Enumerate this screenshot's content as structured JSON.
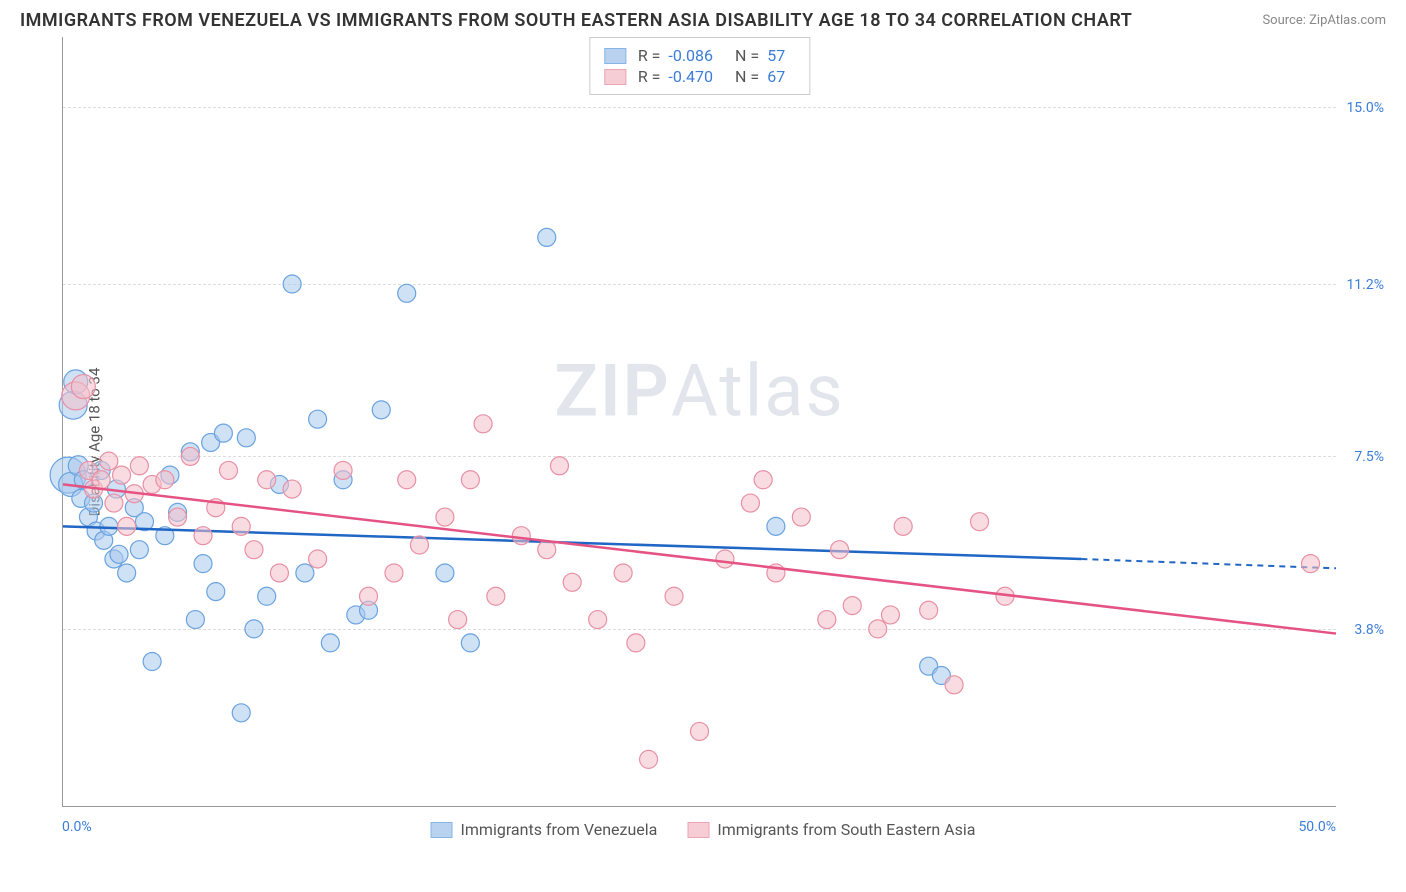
{
  "title": "IMMIGRANTS FROM VENEZUELA VS IMMIGRANTS FROM SOUTH EASTERN ASIA DISABILITY AGE 18 TO 34 CORRELATION CHART",
  "source_label": "Source:",
  "source_name": "ZipAtlas.com",
  "y_axis_label": "Disability Age 18 to 34",
  "watermark_a": "ZIP",
  "watermark_b": "Atlas",
  "chart": {
    "type": "scatter-correlation",
    "xlim": [
      0,
      50
    ],
    "ylim": [
      0,
      16.5
    ],
    "x_tick_labels": {
      "min": "0.0%",
      "max": "50.0%"
    },
    "y_gridlines": [
      {
        "value": 3.8,
        "label": "3.8%"
      },
      {
        "value": 7.5,
        "label": "7.5%"
      },
      {
        "value": 11.2,
        "label": "11.2%"
      },
      {
        "value": 15.0,
        "label": "15.0%"
      }
    ],
    "background_color": "#ffffff",
    "grid_color": "#dddddd",
    "series": [
      {
        "key": "venezuela",
        "label": "Immigrants from Venezuela",
        "fill_color": "#a8c8ec",
        "stroke_color": "#6aa3e0",
        "line_color": "#2066c4",
        "fill_opacity": 0.55,
        "marker_r": 9,
        "R": "-0.086",
        "N": "57",
        "trend": {
          "x0": 0,
          "y0": 6.0,
          "x1": 40,
          "y1": 5.3,
          "x_dash_to": 50,
          "y_dash_to": 5.1
        },
        "points": [
          [
            0.2,
            7.1,
            18
          ],
          [
            0.3,
            6.9,
            12
          ],
          [
            0.4,
            8.6,
            14
          ],
          [
            0.5,
            9.1,
            12
          ],
          [
            0.6,
            7.3,
            10
          ],
          [
            0.7,
            6.6,
            9
          ],
          [
            0.8,
            7.0,
            9
          ],
          [
            1.0,
            6.2,
            9
          ],
          [
            1.2,
            6.5,
            9
          ],
          [
            1.3,
            5.9,
            9
          ],
          [
            1.5,
            7.2,
            9
          ],
          [
            1.6,
            5.7,
            9
          ],
          [
            1.8,
            6.0,
            9
          ],
          [
            2.0,
            5.3,
            9
          ],
          [
            2.1,
            6.8,
            9
          ],
          [
            2.2,
            5.4,
            9
          ],
          [
            2.5,
            5.0,
            9
          ],
          [
            2.8,
            6.4,
            9
          ],
          [
            3.0,
            5.5,
            9
          ],
          [
            3.2,
            6.1,
            9
          ],
          [
            3.5,
            3.1,
            9
          ],
          [
            4.0,
            5.8,
            9
          ],
          [
            4.2,
            7.1,
            9
          ],
          [
            4.5,
            6.3,
            9
          ],
          [
            5.0,
            7.6,
            9
          ],
          [
            5.2,
            4.0,
            9
          ],
          [
            5.5,
            5.2,
            9
          ],
          [
            5.8,
            7.8,
            9
          ],
          [
            6.0,
            4.6,
            9
          ],
          [
            6.3,
            8.0,
            9
          ],
          [
            7.0,
            2.0,
            9
          ],
          [
            7.2,
            7.9,
            9
          ],
          [
            7.5,
            3.8,
            9
          ],
          [
            8.0,
            4.5,
            9
          ],
          [
            8.5,
            6.9,
            9
          ],
          [
            9.0,
            11.2,
            9
          ],
          [
            9.5,
            5.0,
            9
          ],
          [
            10.0,
            8.3,
            9
          ],
          [
            10.5,
            3.5,
            9
          ],
          [
            11.0,
            7.0,
            9
          ],
          [
            11.5,
            4.1,
            9
          ],
          [
            12.0,
            4.2,
            9
          ],
          [
            12.5,
            8.5,
            9
          ],
          [
            13.5,
            11.0,
            9
          ],
          [
            15.0,
            5.0,
            9
          ],
          [
            16.0,
            3.5,
            9
          ],
          [
            19.0,
            12.2,
            9
          ],
          [
            28.0,
            6.0,
            9
          ],
          [
            34.0,
            3.0,
            9
          ],
          [
            34.5,
            2.8,
            9
          ]
        ]
      },
      {
        "key": "seasia",
        "label": "Immigrants from South Eastern Asia",
        "fill_color": "#f4c0cb",
        "stroke_color": "#e890a4",
        "line_color": "#e55383",
        "fill_opacity": 0.55,
        "marker_r": 9,
        "R": "-0.470",
        "N": "67",
        "trend": {
          "x0": 0,
          "y0": 6.9,
          "x1": 50,
          "y1": 3.7
        },
        "points": [
          [
            0.5,
            8.8,
            14
          ],
          [
            0.8,
            9.0,
            12
          ],
          [
            1.0,
            7.2,
            9
          ],
          [
            1.2,
            6.8,
            9
          ],
          [
            1.5,
            7.0,
            9
          ],
          [
            1.8,
            7.4,
            9
          ],
          [
            2.0,
            6.5,
            9
          ],
          [
            2.3,
            7.1,
            9
          ],
          [
            2.5,
            6.0,
            9
          ],
          [
            2.8,
            6.7,
            9
          ],
          [
            3.0,
            7.3,
            9
          ],
          [
            3.5,
            6.9,
            9
          ],
          [
            4.0,
            7.0,
            9
          ],
          [
            4.5,
            6.2,
            9
          ],
          [
            5.0,
            7.5,
            9
          ],
          [
            5.5,
            5.8,
            9
          ],
          [
            6.0,
            6.4,
            9
          ],
          [
            6.5,
            7.2,
            9
          ],
          [
            7.0,
            6.0,
            9
          ],
          [
            7.5,
            5.5,
            9
          ],
          [
            8.0,
            7.0,
            9
          ],
          [
            8.5,
            5.0,
            9
          ],
          [
            9.0,
            6.8,
            9
          ],
          [
            10.0,
            5.3,
            9
          ],
          [
            11.0,
            7.2,
            9
          ],
          [
            12.0,
            4.5,
            9
          ],
          [
            13.0,
            5.0,
            9
          ],
          [
            13.5,
            7.0,
            9
          ],
          [
            14.0,
            5.6,
            9
          ],
          [
            15.0,
            6.2,
            9
          ],
          [
            15.5,
            4.0,
            9
          ],
          [
            16.0,
            7.0,
            9
          ],
          [
            16.5,
            8.2,
            9
          ],
          [
            17.0,
            4.5,
            9
          ],
          [
            18.0,
            5.8,
            9
          ],
          [
            19.0,
            5.5,
            9
          ],
          [
            19.5,
            7.3,
            9
          ],
          [
            20.0,
            4.8,
            9
          ],
          [
            21.0,
            4.0,
            9
          ],
          [
            22.0,
            5.0,
            9
          ],
          [
            22.5,
            3.5,
            9
          ],
          [
            23.0,
            1.0,
            9
          ],
          [
            24.0,
            4.5,
            9
          ],
          [
            25.0,
            1.6,
            9
          ],
          [
            26.0,
            5.3,
            9
          ],
          [
            27.0,
            6.5,
            9
          ],
          [
            27.5,
            7.0,
            9
          ],
          [
            28.0,
            5.0,
            9
          ],
          [
            29.0,
            6.2,
            9
          ],
          [
            30.0,
            4.0,
            9
          ],
          [
            30.5,
            5.5,
            9
          ],
          [
            31.0,
            4.3,
            9
          ],
          [
            32.0,
            3.8,
            9
          ],
          [
            32.5,
            4.1,
            9
          ],
          [
            33.0,
            6.0,
            9
          ],
          [
            34.0,
            4.2,
            9
          ],
          [
            35.0,
            2.6,
            9
          ],
          [
            36.0,
            6.1,
            9
          ],
          [
            37.0,
            4.5,
            9
          ],
          [
            49.0,
            5.2,
            9
          ]
        ]
      }
    ]
  },
  "legend_top": {
    "r_label": "R =",
    "n_label": "N ="
  }
}
